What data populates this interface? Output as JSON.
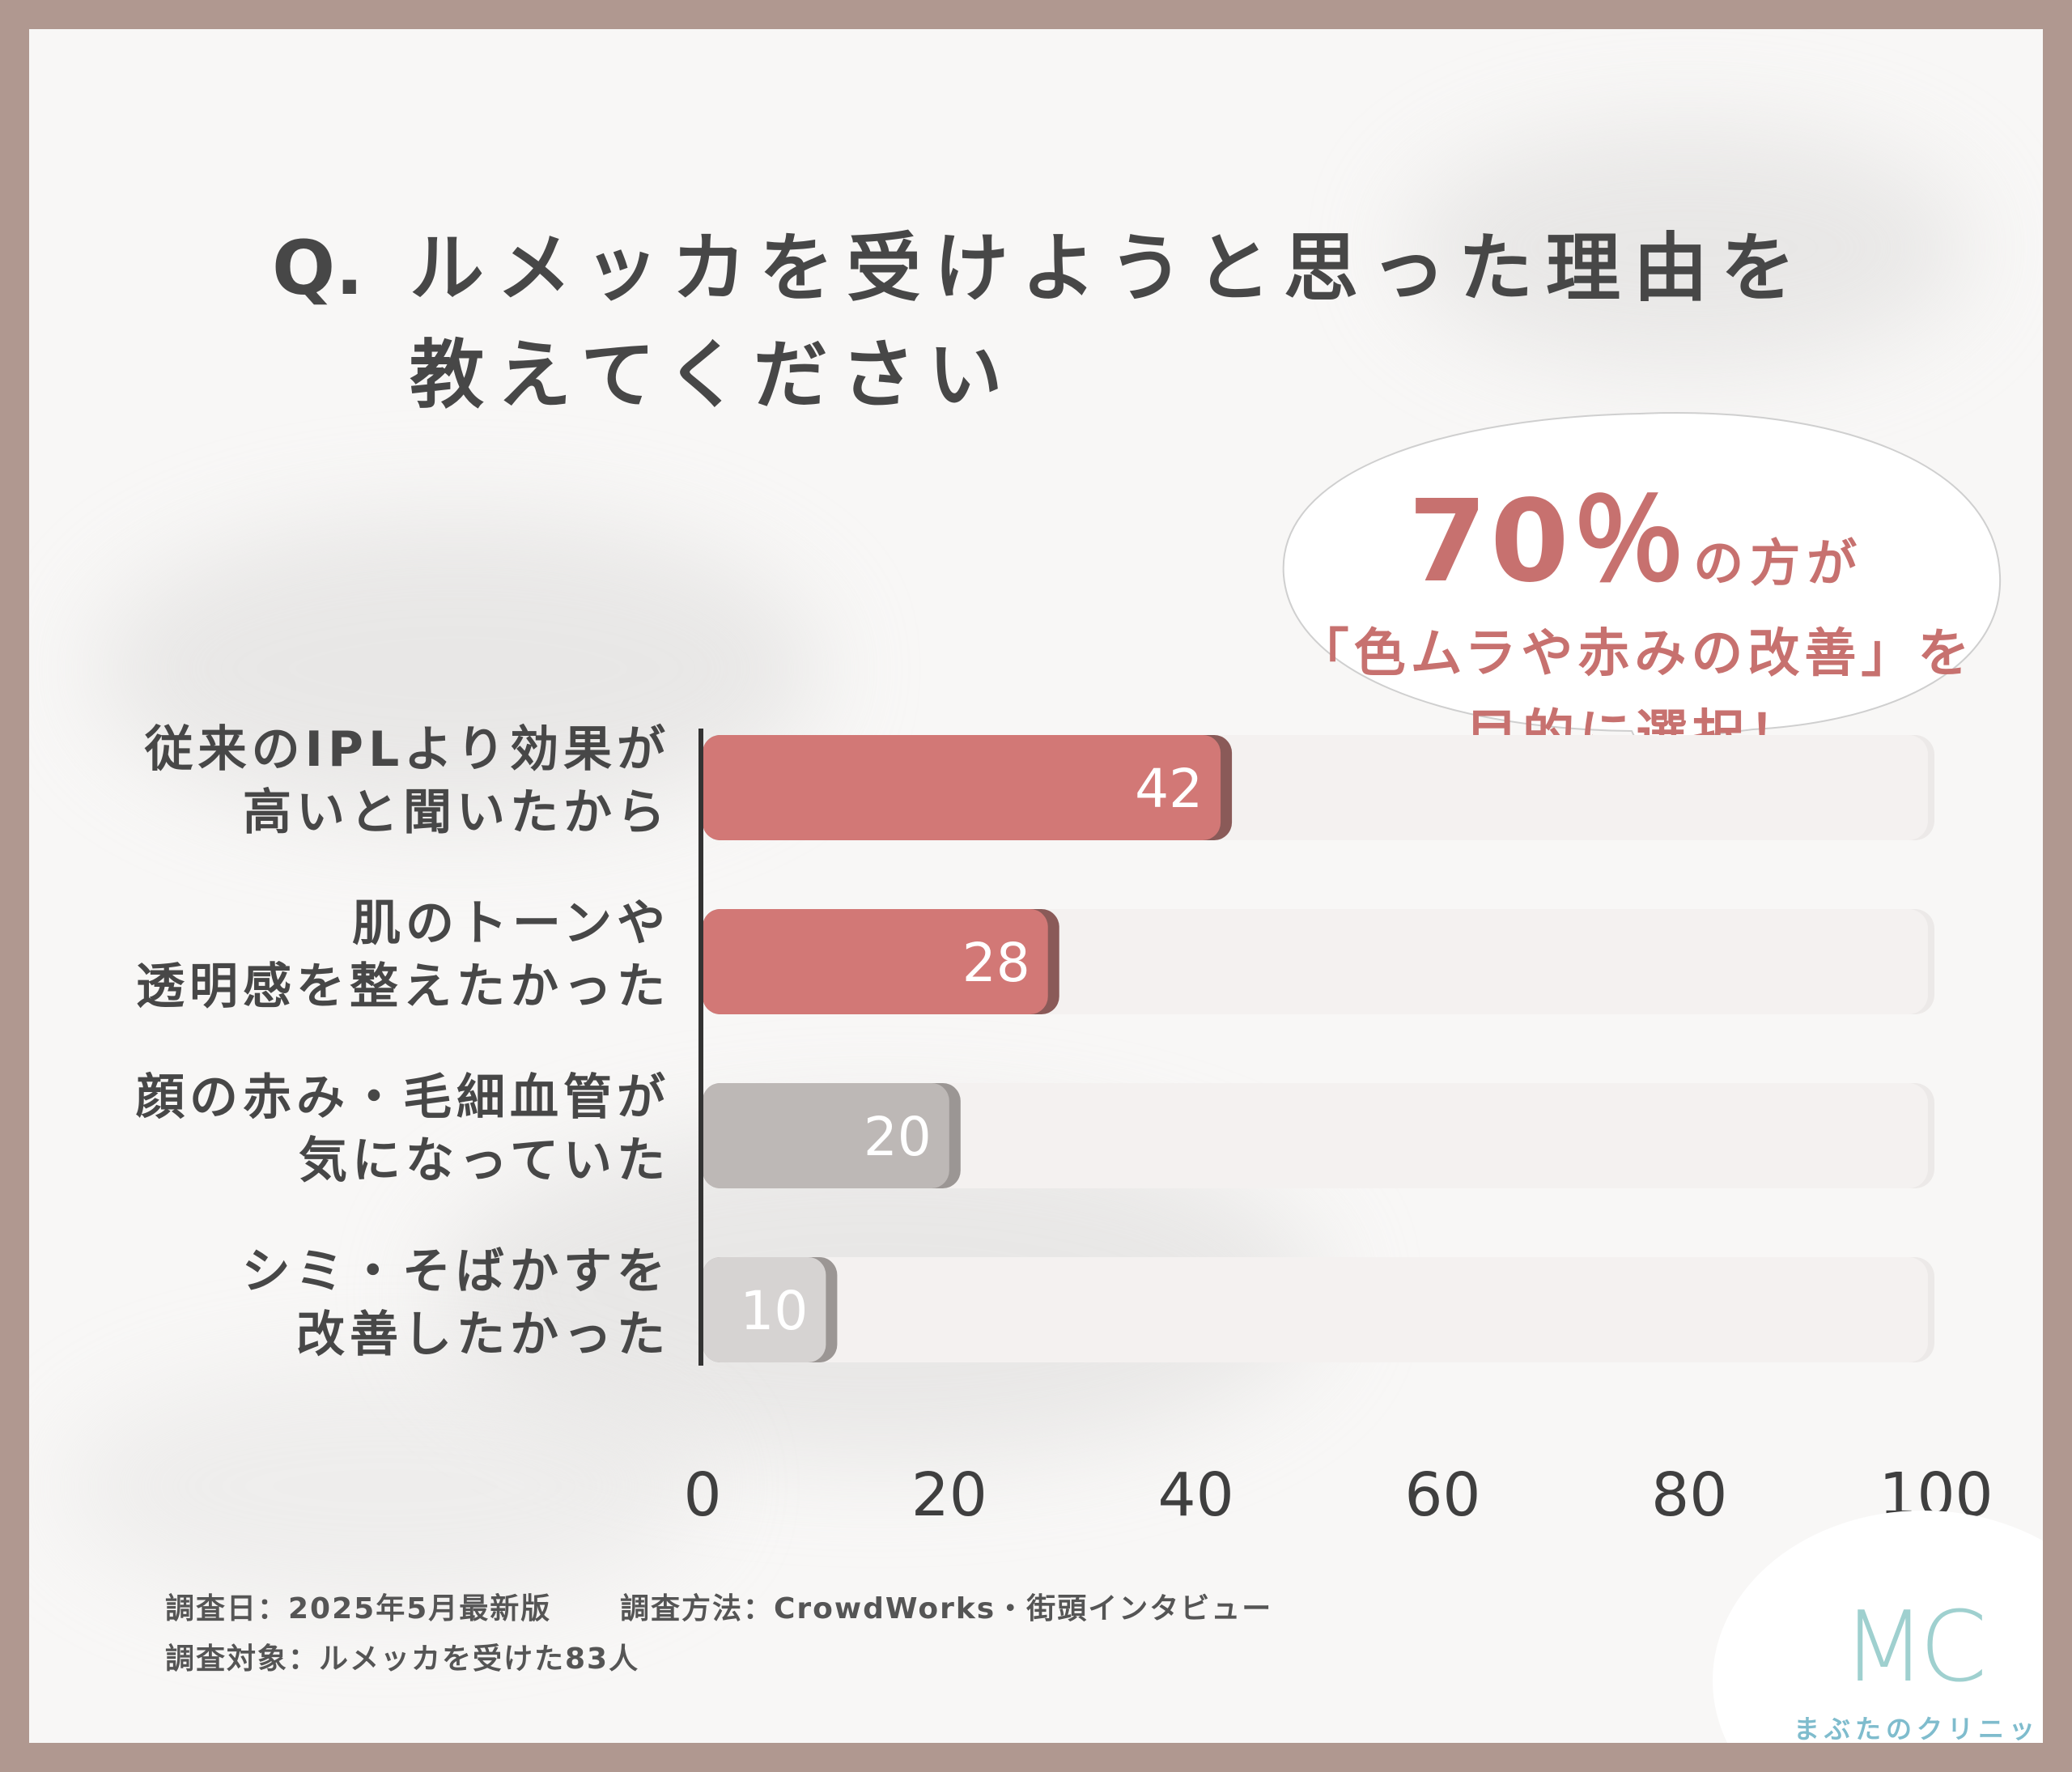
{
  "title": {
    "prefix": "Q.",
    "line1": "ルメッカを受けようと思った理由を",
    "line2": "教えてください"
  },
  "callout": {
    "percent": "70％",
    "suffix": "の方が",
    "line2": "「色ムラや赤みの改善」を",
    "line3": "目的に選択！"
  },
  "chart_data": {
    "type": "bar",
    "orientation": "horizontal",
    "categories": [
      [
        "従来のIPLより効果が",
        "高いと聞いたから"
      ],
      [
        "肌のトーンや",
        "透明感を整えたかった"
      ],
      [
        "顔の赤み・毛細血管が",
        "気になっていた"
      ],
      [
        "シミ・そばかすを",
        "改善したかった"
      ]
    ],
    "values": [
      42,
      28,
      20,
      10
    ],
    "value_labels": [
      "42",
      "28",
      "20",
      "10"
    ],
    "colors": [
      "#d27876",
      "#d27876",
      "#bdb8b6",
      "#d6d3d2"
    ],
    "xlim": [
      0,
      100
    ],
    "xticks": [
      0,
      20,
      40,
      60,
      80,
      100
    ],
    "xtick_labels": [
      "0",
      "20",
      "40",
      "60",
      "80",
      "100"
    ],
    "grid": false,
    "legend": "none"
  },
  "footer": {
    "date": "調査日：2025年5月最新版",
    "method": "調査方法：CrowdWorks・街頭インタビュー",
    "target": "調査対象：ルメッカを受けた83人"
  },
  "logo": {
    "mark": "MC",
    "name": "まぶたのクリニック"
  }
}
